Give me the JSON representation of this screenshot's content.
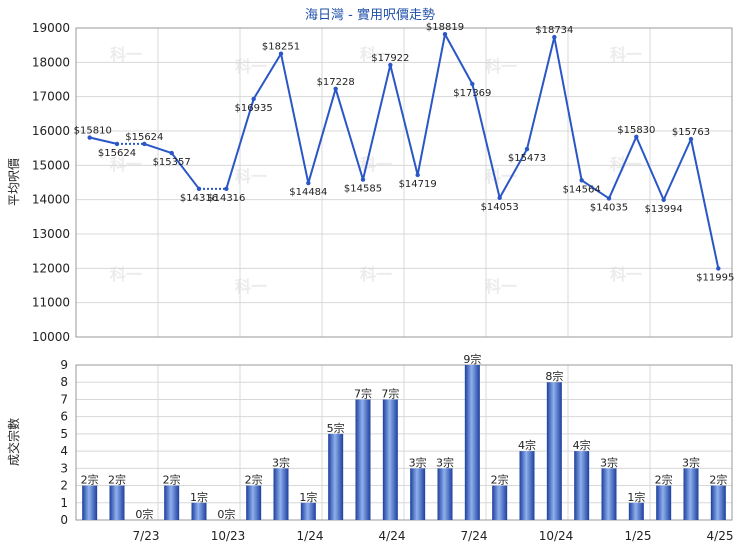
{
  "title": "海日灣 - 實用呎價走勢",
  "colors": {
    "line": "#2a56c6",
    "bar": "#2f5bc9",
    "title": "#1f4fa8",
    "grid": "#d8d8d8"
  },
  "chart_data": [
    {
      "type": "line",
      "ylabel": "平均呎價",
      "ylim": [
        10000,
        19000
      ],
      "yticks": [
        "19000",
        "18000",
        "17000",
        "16000",
        "15000",
        "14000",
        "13000",
        "12000",
        "11000",
        "10000"
      ],
      "grid": true,
      "series": [
        {
          "values": [
            15810,
            15624,
            15624,
            15357,
            14316,
            14316,
            16935,
            18251,
            14484,
            17228,
            14585,
            17922,
            14719,
            18819,
            17369,
            14053,
            15473,
            18734,
            14564,
            14035,
            15830,
            13994,
            15763,
            11995
          ]
        }
      ],
      "labels": [
        "$15810",
        "$15624",
        "$15624",
        "$15357",
        "$14316",
        "$14316",
        "$16935",
        "$18251",
        "$14484",
        "$17228",
        "$14585",
        "$17922",
        "$14719",
        "$18819",
        "$17369",
        "$14053",
        "$15473",
        "$18734",
        "$14564",
        "$14035",
        "$15830",
        "$13994",
        "$15763",
        "$11995"
      ],
      "gap_segments": [
        1,
        4
      ]
    },
    {
      "type": "bar",
      "ylabel": "成交宗數",
      "ylim": [
        0,
        9
      ],
      "yticks": [
        "9",
        "8",
        "7",
        "6",
        "5",
        "4",
        "3",
        "2",
        "1",
        "0"
      ],
      "grid": true,
      "values": [
        2,
        2,
        0,
        2,
        1,
        0,
        2,
        3,
        1,
        5,
        7,
        7,
        3,
        3,
        9,
        2,
        4,
        8,
        4,
        3,
        1,
        2,
        3,
        2
      ],
      "labels": [
        "2宗",
        "2宗",
        "0宗",
        "2宗",
        "1宗",
        "0宗",
        "2宗",
        "3宗",
        "1宗",
        "5宗",
        "7宗",
        "7宗",
        "3宗",
        "3宗",
        "9宗",
        "2宗",
        "4宗",
        "8宗",
        "4宗",
        "3宗",
        "1宗",
        "2宗",
        "3宗",
        "2宗"
      ],
      "xticks": [
        "7/23",
        "10/23",
        "1/24",
        "4/24",
        "7/24",
        "10/24",
        "1/25",
        "4/25"
      ]
    }
  ]
}
